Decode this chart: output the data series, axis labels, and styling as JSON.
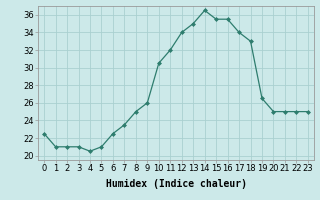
{
  "x": [
    0,
    1,
    2,
    3,
    4,
    5,
    6,
    7,
    8,
    9,
    10,
    11,
    12,
    13,
    14,
    15,
    16,
    17,
    18,
    19,
    20,
    21,
    22,
    23
  ],
  "y": [
    22.5,
    21.0,
    21.0,
    21.0,
    20.5,
    21.0,
    22.5,
    23.5,
    25.0,
    26.0,
    30.5,
    32.0,
    34.0,
    35.0,
    36.5,
    35.5,
    35.5,
    34.0,
    33.0,
    26.5,
    25.0,
    25.0,
    25.0,
    25.0
  ],
  "line_color": "#2e7d6e",
  "marker": "D",
  "marker_size": 2.0,
  "bg_color": "#cce9e9",
  "grid_color": "#aad0d0",
  "xlabel": "Humidex (Indice chaleur)",
  "xlim": [
    -0.5,
    23.5
  ],
  "ylim": [
    19.5,
    37.0
  ],
  "yticks": [
    20,
    22,
    24,
    26,
    28,
    30,
    32,
    34,
    36
  ],
  "xticks": [
    0,
    1,
    2,
    3,
    4,
    5,
    6,
    7,
    8,
    9,
    10,
    11,
    12,
    13,
    14,
    15,
    16,
    17,
    18,
    19,
    20,
    21,
    22,
    23
  ],
  "xtick_labels": [
    "0",
    "1",
    "2",
    "3",
    "4",
    "5",
    "6",
    "7",
    "8",
    "9",
    "10",
    "11",
    "12",
    "13",
    "14",
    "15",
    "16",
    "17",
    "18",
    "19",
    "20",
    "21",
    "22",
    "23"
  ],
  "tick_fontsize": 6,
  "label_fontsize": 7
}
